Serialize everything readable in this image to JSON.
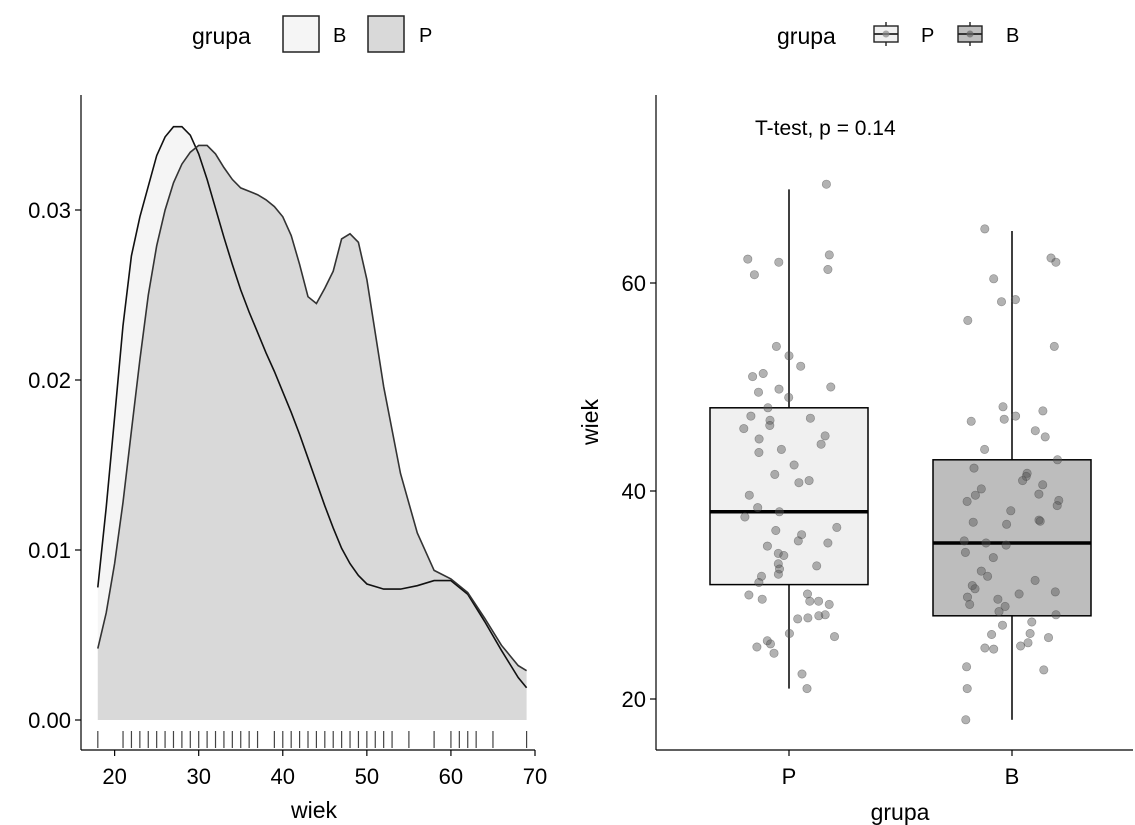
{
  "chart_data": [
    {
      "type": "area",
      "subtype": "density",
      "xlabel": "wiek",
      "ylabel": "",
      "xlim": [
        16,
        70
      ],
      "ylim": [
        0,
        0.035
      ],
      "x_ticks": [
        20,
        30,
        40,
        50,
        60,
        70
      ],
      "x_tick_labels": [
        "20",
        "30",
        "40",
        "50",
        "60",
        "70"
      ],
      "y_ticks": [
        0,
        0.01,
        0.02,
        0.03
      ],
      "y_tick_labels": [
        "0.00",
        "0.01",
        "0.02",
        "0.03"
      ],
      "legend": {
        "title": "grupa",
        "position": "top",
        "entries": [
          "B",
          "P"
        ]
      },
      "grid": false,
      "rug": [
        18,
        21,
        22,
        23,
        24,
        25,
        26,
        27,
        28,
        29,
        30,
        31,
        32,
        33,
        34,
        35,
        36,
        37,
        39,
        40,
        41,
        42,
        43,
        44,
        45,
        46,
        47,
        48,
        49,
        50,
        51,
        52,
        53,
        55,
        58,
        60,
        61,
        62,
        63,
        65,
        69
      ],
      "series": [
        {
          "name": "B",
          "color": "#f5f5f5",
          "x": [
            18,
            19,
            20,
            21,
            22,
            23,
            24,
            25,
            26,
            27,
            28,
            29,
            30,
            31,
            32,
            33,
            34,
            35,
            36,
            37,
            38,
            39,
            40,
            41,
            42,
            43,
            44,
            45,
            46,
            47,
            48,
            49,
            50,
            52,
            54,
            56,
            58,
            60,
            62,
            64,
            66,
            68,
            69
          ],
          "values": [
            0.0078,
            0.0125,
            0.0178,
            0.0232,
            0.0273,
            0.0296,
            0.0314,
            0.0332,
            0.0343,
            0.0349,
            0.0349,
            0.0344,
            0.0333,
            0.0318,
            0.0301,
            0.0284,
            0.0268,
            0.0253,
            0.024,
            0.0228,
            0.0216,
            0.0205,
            0.0193,
            0.0181,
            0.0168,
            0.0154,
            0.014,
            0.0126,
            0.0113,
            0.0101,
            0.0092,
            0.0085,
            0.008,
            0.0077,
            0.0077,
            0.0079,
            0.0082,
            0.0082,
            0.0074,
            0.0058,
            0.0041,
            0.0025,
            0.0019
          ]
        },
        {
          "name": "P",
          "color": "#d9d9d9",
          "x": [
            18,
            19,
            20,
            21,
            22,
            23,
            24,
            25,
            26,
            27,
            28,
            29,
            30,
            31,
            32,
            33,
            34,
            35,
            36,
            37,
            38,
            39,
            40,
            41,
            42,
            43,
            44,
            45,
            46,
            47,
            48,
            49,
            50,
            52,
            54,
            56,
            58,
            60,
            62,
            64,
            66,
            68,
            69
          ],
          "values": [
            0.0042,
            0.0063,
            0.0092,
            0.0128,
            0.017,
            0.0212,
            0.025,
            0.0279,
            0.03,
            0.0316,
            0.0327,
            0.0334,
            0.0338,
            0.0338,
            0.0333,
            0.0325,
            0.0318,
            0.0313,
            0.0311,
            0.0309,
            0.0306,
            0.0302,
            0.0296,
            0.0285,
            0.0268,
            0.0249,
            0.0245,
            0.0254,
            0.0264,
            0.0283,
            0.0286,
            0.0281,
            0.0259,
            0.0196,
            0.0145,
            0.011,
            0.0088,
            0.0083,
            0.0075,
            0.006,
            0.0044,
            0.0032,
            0.0029
          ]
        }
      ]
    },
    {
      "type": "box",
      "xlabel": "grupa",
      "ylabel": "wiek",
      "ylim": [
        15,
        75
      ],
      "y_ticks": [
        20,
        40,
        60
      ],
      "y_tick_labels": [
        "20",
        "40",
        "60"
      ],
      "categories": [
        "P",
        "B"
      ],
      "legend": {
        "title": "grupa",
        "position": "top",
        "entries": [
          "P",
          "B"
        ]
      },
      "grid": false,
      "annotation": "T-test, p = 0.14",
      "boxes": [
        {
          "group": "P",
          "color": "#f0f0f0",
          "whisker_low": 21,
          "q1": 31,
          "median": 38,
          "q3": 48,
          "whisker_high": 69
        },
        {
          "group": "B",
          "color": "#bdbdbd",
          "whisker_low": 18,
          "q1": 28,
          "median": 35,
          "q3": 43,
          "whisker_high": 65
        }
      ],
      "points": {
        "P": [
          69.5,
          62.7,
          62.3,
          62,
          61.3,
          60.8,
          53.9,
          53,
          52,
          51.3,
          51,
          50,
          49.8,
          49.5,
          49,
          48,
          47.2,
          47,
          46.8,
          46.3,
          46,
          45.3,
          45,
          44.5,
          44,
          43.7,
          42.5,
          41.6,
          41,
          40.8,
          39.6,
          38.4,
          38,
          37.5,
          36.5,
          36.2,
          35.8,
          35.2,
          35,
          34.7,
          34,
          33.8,
          33,
          32.8,
          32.5,
          32,
          31.8,
          31.2,
          30.1,
          30,
          29.6,
          29.4,
          29.4,
          29.1,
          28.1,
          28,
          27.8,
          27.7,
          26.3,
          26,
          25.6,
          25.3,
          25,
          24.4,
          22.4,
          21
        ],
        "B": [
          65.2,
          62.4,
          62,
          60.4,
          58.4,
          58.2,
          56.4,
          53.9,
          48.1,
          47.7,
          47.2,
          46.9,
          46.7,
          45.8,
          45.2,
          44,
          43,
          42.2,
          41.7,
          41.4,
          41,
          40.6,
          40.2,
          39.7,
          39.6,
          39.1,
          39,
          38.6,
          38.1,
          37.2,
          37.1,
          37,
          36.8,
          35.2,
          35,
          34.8,
          34.1,
          33.6,
          32.3,
          31.8,
          31.4,
          30.9,
          30.6,
          30.3,
          30.1,
          29.8,
          29.6,
          29.1,
          28.9,
          28.4,
          28.1,
          27.4,
          27.1,
          26.3,
          26.2,
          25.9,
          25.4,
          25.1,
          24.9,
          24.8,
          23.1,
          22.8,
          21,
          18
        ]
      }
    }
  ]
}
